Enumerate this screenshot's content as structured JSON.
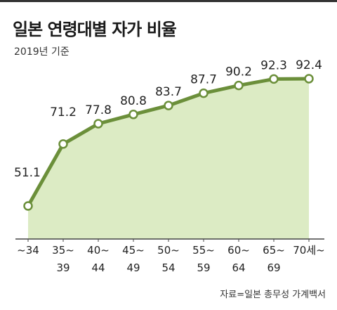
{
  "title": "일본 연령대별 자가 비율",
  "subtitle": "2019년 기준",
  "source": "자료=일본 총무성 가계백서",
  "colors": {
    "line": "#6b8f3a",
    "fill": "#dcebc4",
    "axis": "#444444"
  },
  "chart_data": {
    "type": "area",
    "title": "일본 연령대별 자가 비율",
    "subtitle": "2019년 기준",
    "categories": [
      {
        "line1": "~34",
        "line2": ""
      },
      {
        "line1": "35~",
        "line2": "39"
      },
      {
        "line1": "40~",
        "line2": "44"
      },
      {
        "line1": "45~",
        "line2": "49"
      },
      {
        "line1": "50~",
        "line2": "54"
      },
      {
        "line1": "55~",
        "line2": "59"
      },
      {
        "line1": "60~",
        "line2": "64"
      },
      {
        "line1": "65~",
        "line2": "69"
      },
      {
        "line1": "70세~",
        "line2": ""
      }
    ],
    "values": [
      51.1,
      71.2,
      77.8,
      80.8,
      83.7,
      87.7,
      90.2,
      92.3,
      92.4
    ],
    "value_labels": [
      "51.1",
      "71.2",
      "77.8",
      "80.8",
      "83.7",
      "87.7",
      "90.2",
      "92.3",
      "92.4"
    ],
    "xlabel": "",
    "ylabel": "",
    "grid": false,
    "legend": "none"
  }
}
